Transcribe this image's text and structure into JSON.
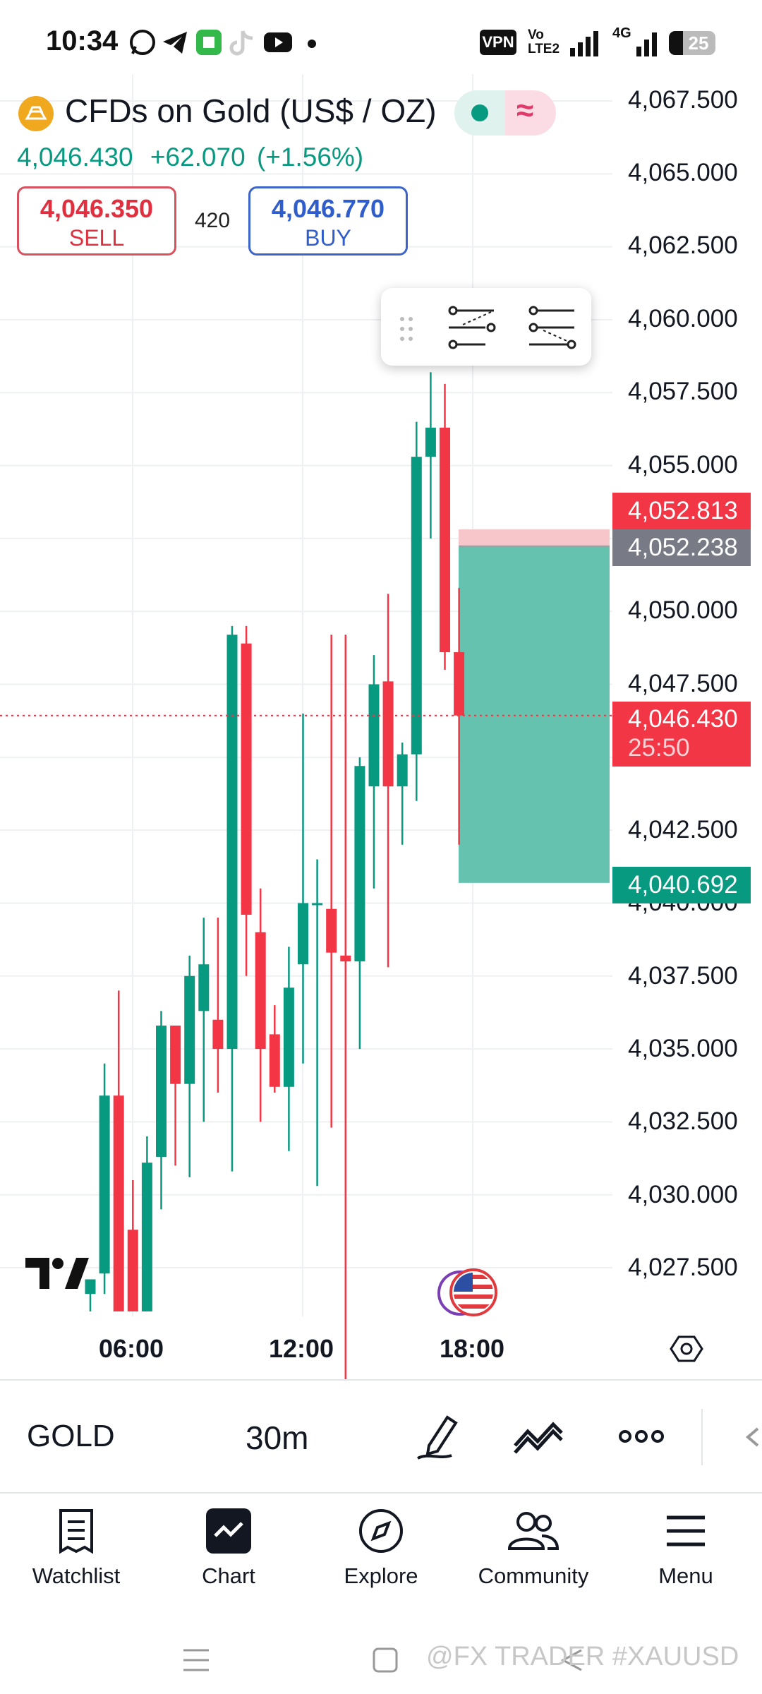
{
  "status_bar": {
    "time": "10:34",
    "vpn_label": "VPN",
    "network_label_top": "Vo",
    "network_label_bottom": "LTE2",
    "signal2_label": "4G",
    "battery": "25",
    "icons": [
      "whatsapp-icon",
      "telegram-icon",
      "app-icon",
      "tiktok-icon",
      "youtube-icon",
      "dot-icon"
    ]
  },
  "header": {
    "symbol_name": "CFDs on Gold (US$ / OZ)",
    "last_price": "4,046.430",
    "change": "+62.070",
    "change_pct": "(+1.56%)",
    "sell_price": "4,046.350",
    "sell_label": "SELL",
    "spread": "420",
    "buy_price": "4,046.770",
    "buy_label": "BUY"
  },
  "price_scale": {
    "ticks": [
      "4,067.500",
      "4,065.000",
      "4,062.500",
      "4,060.000",
      "4,057.500",
      "4,055.000",
      "4,050.000",
      "4,047.500",
      "4,042.500",
      "4,040.000",
      "4,037.500",
      "4,035.000",
      "4,032.500",
      "4,030.000",
      "4,027.500"
    ],
    "stop_loss_label": "4,052.813",
    "entry_label": "4,052.238",
    "current_label": "4,046.430",
    "countdown": "25:50",
    "target_label": "4,040.692"
  },
  "time_axis": [
    "06:00",
    "12:00",
    "18:00"
  ],
  "colors": {
    "up": "#089981",
    "down": "#f23645",
    "target_fill": "#5dbfab",
    "stop_fill": "#f6c6ca",
    "accent": "#2962ff"
  },
  "chart_data": {
    "type": "candlestick",
    "interval": "30m",
    "candles": [
      {
        "o": 4026.6,
        "h": 4027.1,
        "l": 4026.0,
        "c": 4027.1
      },
      {
        "o": 4027.3,
        "h": 4034.5,
        "l": 4026.6,
        "c": 4033.4
      },
      {
        "o": 4033.4,
        "h": 4037.0,
        "l": 4026.0,
        "c": 4026.0
      },
      {
        "o": 4028.8,
        "h": 4030.5,
        "l": 4026.0,
        "c": 4026.0
      },
      {
        "o": 4026.0,
        "h": 4032.0,
        "l": 4026.0,
        "c": 4031.1
      },
      {
        "o": 4031.3,
        "h": 4036.3,
        "l": 4029.5,
        "c": 4035.8
      },
      {
        "o": 4035.8,
        "h": 4035.8,
        "l": 4031.0,
        "c": 4033.8
      },
      {
        "o": 4033.8,
        "h": 4038.2,
        "l": 4030.6,
        "c": 4037.5
      },
      {
        "o": 4036.3,
        "h": 4039.5,
        "l": 4032.5,
        "c": 4037.9
      },
      {
        "o": 4036.0,
        "h": 4039.5,
        "l": 4033.5,
        "c": 4035.0
      },
      {
        "o": 4035.0,
        "h": 4049.5,
        "l": 4030.8,
        "c": 4049.2
      },
      {
        "o": 4048.9,
        "h": 4049.5,
        "l": 4037.5,
        "c": 4039.6
      },
      {
        "o": 4039.0,
        "h": 4040.5,
        "l": 4032.5,
        "c": 4035.0
      },
      {
        "o": 4035.5,
        "h": 4036.5,
        "l": 4033.5,
        "c": 4033.7
      },
      {
        "o": 4033.7,
        "h": 4038.5,
        "l": 4031.5,
        "c": 4037.1
      },
      {
        "o": 4037.9,
        "h": 4046.5,
        "l": 4034.5,
        "c": 4040.0
      },
      {
        "o": 4040.0,
        "h": 4041.5,
        "l": 4030.3,
        "c": 4040.0
      },
      {
        "o": 4039.8,
        "h": 4049.2,
        "l": 4032.3,
        "c": 4038.3
      },
      {
        "o": 4038.2,
        "h": 4049.2,
        "l": 4023.0,
        "c": 4038.0
      },
      {
        "o": 4038.0,
        "h": 4045.0,
        "l": 4035.0,
        "c": 4044.7
      },
      {
        "o": 4044.0,
        "h": 4048.5,
        "l": 4040.5,
        "c": 4047.5
      },
      {
        "o": 4047.6,
        "h": 4050.6,
        "l": 4037.8,
        "c": 4044.0
      },
      {
        "o": 4044.0,
        "h": 4045.5,
        "l": 4042.0,
        "c": 4045.1
      },
      {
        "o": 4045.1,
        "h": 4056.5,
        "l": 4043.5,
        "c": 4055.3
      },
      {
        "o": 4055.3,
        "h": 4058.2,
        "l": 4052.5,
        "c": 4056.3
      },
      {
        "o": 4056.3,
        "h": 4057.8,
        "l": 4048.0,
        "c": 4048.6
      },
      {
        "o": 4048.6,
        "h": 4050.8,
        "l": 4042.0,
        "c": 4046.43
      }
    ],
    "position": {
      "entry": 4052.238,
      "stop_loss": 4052.813,
      "target": 4040.692
    },
    "ylim": [
      4024.0,
      4068.0
    ],
    "time_ticks": [
      "06:00",
      "12:00",
      "18:00"
    ]
  },
  "bottom_toolbar": {
    "symbol": "GOLD",
    "interval": "30m"
  },
  "nav": [
    {
      "label": "Watchlist",
      "icon": "watchlist-icon"
    },
    {
      "label": "Chart",
      "icon": "chart-icon"
    },
    {
      "label": "Explore",
      "icon": "compass-icon"
    },
    {
      "label": "Community",
      "icon": "community-icon"
    },
    {
      "label": "Menu",
      "icon": "menu-icon"
    }
  ],
  "watermark": "@FX TRADER #XAUUSD"
}
